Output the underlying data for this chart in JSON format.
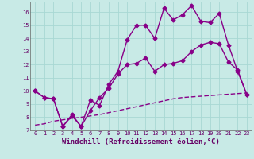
{
  "title": "",
  "xlabel": "Windchill (Refroidissement éolien,°C)",
  "ylabel": "",
  "bg_color": "#c8eae6",
  "grid_color": "#a8d8d4",
  "line_color": "#880088",
  "xlim": [
    -0.5,
    23.5
  ],
  "ylim": [
    7,
    16.8
  ],
  "xticks": [
    0,
    1,
    2,
    3,
    4,
    5,
    6,
    7,
    8,
    9,
    10,
    11,
    12,
    13,
    14,
    15,
    16,
    17,
    18,
    19,
    20,
    21,
    22,
    23
  ],
  "yticks": [
    7,
    8,
    9,
    10,
    11,
    12,
    13,
    14,
    15,
    16
  ],
  "line1_x": [
    0,
    1,
    2,
    3,
    4,
    5,
    6,
    7,
    8,
    9,
    10,
    11,
    12,
    13,
    14,
    15,
    16,
    17,
    18,
    19,
    20,
    21,
    22,
    23
  ],
  "line1_y": [
    10.0,
    9.5,
    9.4,
    7.3,
    8.2,
    7.3,
    8.5,
    9.5,
    10.2,
    11.3,
    12.0,
    12.1,
    12.5,
    11.5,
    12.0,
    12.1,
    12.3,
    13.0,
    13.5,
    13.7,
    13.6,
    12.2,
    11.6,
    9.7
  ],
  "line2_x": [
    0,
    1,
    2,
    3,
    4,
    5,
    6,
    7,
    8,
    9,
    10,
    11,
    12,
    13,
    14,
    15,
    16,
    17,
    18,
    19,
    20,
    21,
    22,
    23
  ],
  "line2_y": [
    10.0,
    9.5,
    9.4,
    7.3,
    8.1,
    7.3,
    9.3,
    8.9,
    10.5,
    11.5,
    13.9,
    15.0,
    15.0,
    14.0,
    16.3,
    15.4,
    15.8,
    16.5,
    15.3,
    15.2,
    15.9,
    13.5,
    11.5,
    9.7
  ],
  "line3_x": [
    0,
    1,
    2,
    3,
    4,
    5,
    6,
    7,
    8,
    9,
    10,
    11,
    12,
    13,
    14,
    15,
    16,
    17,
    18,
    19,
    20,
    21,
    22,
    23
  ],
  "line3_y": [
    7.4,
    7.5,
    7.7,
    7.8,
    7.9,
    8.0,
    8.1,
    8.2,
    8.35,
    8.5,
    8.65,
    8.8,
    8.95,
    9.1,
    9.25,
    9.4,
    9.5,
    9.55,
    9.6,
    9.65,
    9.7,
    9.75,
    9.8,
    9.85
  ],
  "marker": "D",
  "marker_size": 2.5,
  "line_width": 1.0,
  "tick_fontsize": 5,
  "xlabel_fontsize": 6.5
}
